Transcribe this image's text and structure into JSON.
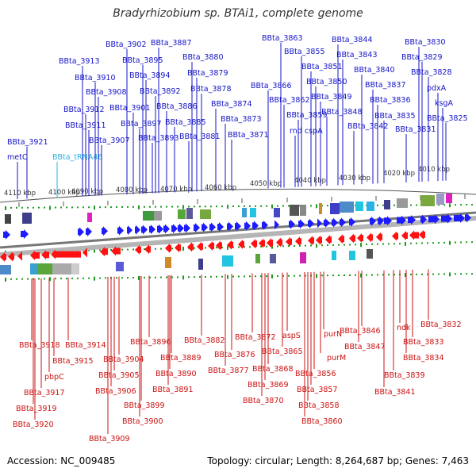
{
  "title": "Bradyrhizobium sp. BTAi1, complete genome",
  "footer": {
    "accession": "Accession: NC_009485",
    "topology": "Topology: circular; Length: 8,264,687 bp; Genes: 7,463"
  },
  "colors": {
    "forward_label": "#1414c8",
    "reverse_label": "#cc1111",
    "trna_label": "#2ab2e6",
    "forward_arrow": "#1c1cff",
    "reverse_arrow": "#ff1111",
    "scale": "#555555",
    "track": "#777777",
    "dot_green": "#1f9a1f"
  },
  "scale": {
    "ticks": [
      "4110 kbp",
      "4100 kbp",
      "4090 kbp",
      "4080 kbp",
      "4070 kbp",
      "4060 kbp",
      "4050 kbp",
      "4040 kbp",
      "4030 kbp",
      "4020 kbp",
      "4010 kbp"
    ]
  },
  "forward_genes": [
    "metC",
    "BBta_tRNA46",
    "BBta_3921",
    "BBta_3913",
    "BBta_3912",
    "BBta_3911",
    "BBta_3910",
    "BBta_3908",
    "BBta_3907",
    "BBta_3902",
    "BBta_3901",
    "BBta_3897",
    "BBta_3895",
    "BBta_3894",
    "BBta_3893",
    "BBta_3892",
    "BBta_3887",
    "BBta_3886",
    "BBta_3885",
    "BBta_3881",
    "BBta_3880",
    "BBta_3879",
    "BBta_3878",
    "BBta_3874",
    "BBta_3873",
    "BBta_3871",
    "BBta_3866",
    "BBta_3863",
    "BBta_3862",
    "rnd",
    "BBta_3859",
    "BBta_3855",
    "cspA",
    "BBta_3851",
    "BBta_3850",
    "BBta_3849",
    "BBta_3848",
    "BBta_3844",
    "BBta_3843",
    "BBta_3842",
    "BBta_3840",
    "BBta_3837",
    "BBta_3836",
    "BBta_3835",
    "BBta_3831",
    "BBta_3830",
    "BBta_3829",
    "BBta_3828",
    "pdxA",
    "ksgA",
    "BBta_3825"
  ],
  "reverse_genes": [
    "BBta_3918",
    "BBta_3919",
    "BBta_3920",
    "BBta_3917",
    "pbpC",
    "BBta_3915",
    "BBta_3914",
    "BBta_3909",
    "BBta_3906",
    "BBta_3905",
    "BBta_3904",
    "BBta_3900",
    "BBta_3899",
    "BBta_3896",
    "BBta_3891",
    "BBta_3890",
    "BBta_3889",
    "BBta_3882",
    "BBta_3877",
    "BBta_3876",
    "BBta_3872",
    "BBta_3870",
    "BBta_3869",
    "BBta_3868",
    "BBta_3865",
    "aspS",
    "BBta_3860",
    "BBta_3858",
    "BBta_3857",
    "BBta_3856",
    "purM",
    "purN",
    "BBta_3847",
    "BBta_3846",
    "BBta_3841",
    "BBta_3839",
    "ndk",
    "BBta_3834",
    "BBta_3833",
    "BBta_3832"
  ]
}
